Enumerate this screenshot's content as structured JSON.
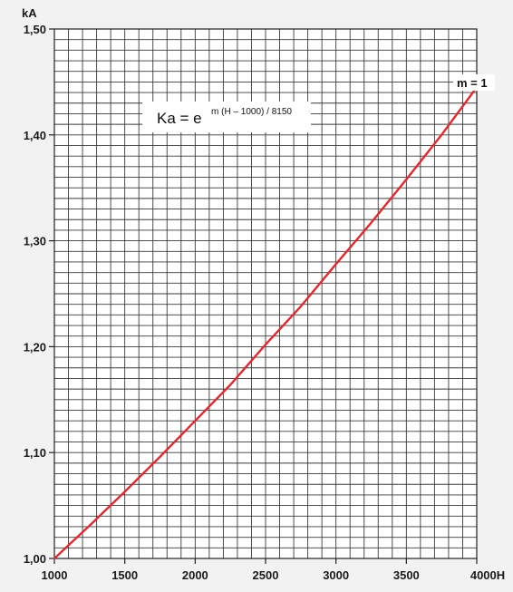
{
  "chart_data": {
    "type": "line",
    "xlabel": "H",
    "ylabel": "kA",
    "xlim": [
      1000,
      4000
    ],
    "ylim": [
      1.0,
      1.5
    ],
    "x_ticks": [
      "1000",
      "1500",
      "2000",
      "2500",
      "3000",
      "3500",
      "4000H"
    ],
    "y_ticks": [
      "1,00",
      "1,10",
      "1,20",
      "1,30",
      "1,40",
      "1,50"
    ],
    "grid": true,
    "formula": {
      "main": "Ka = e",
      "exponent": "m (H – 1000) / 8150"
    },
    "series": [
      {
        "name": "m = 1",
        "color": "#e0282e",
        "x": [
          1000,
          1250,
          1500,
          1750,
          2000,
          2250,
          2500,
          2750,
          3000,
          3250,
          3500,
          3750,
          4000
        ],
        "y": [
          1.0,
          1.031,
          1.063,
          1.096,
          1.13,
          1.164,
          1.202,
          1.238,
          1.278,
          1.317,
          1.358,
          1.4,
          1.445
        ]
      }
    ]
  }
}
